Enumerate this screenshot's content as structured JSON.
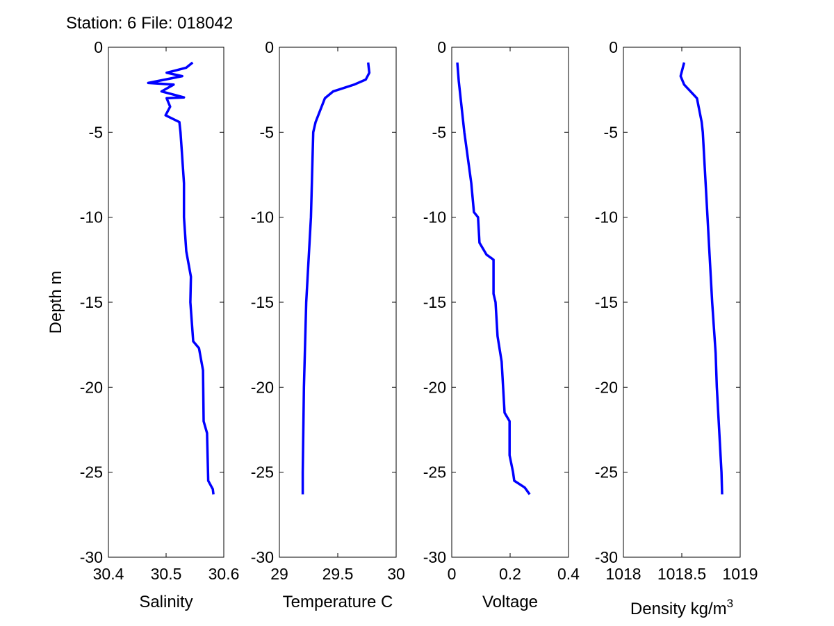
{
  "title": "Station: 6 File: 018042",
  "chart_data": [
    {
      "type": "line",
      "xlabel": "Salinity",
      "ylabel": "Depth m",
      "xlim": [
        30.4,
        30.6
      ],
      "ylim": [
        -30,
        0
      ],
      "xticks": [
        "30.4",
        "30.5",
        "30.6"
      ],
      "yticks": [
        "0",
        "-5",
        "-10",
        "-15",
        "-20",
        "-25",
        "-30"
      ],
      "color": "#0000ff",
      "x": [
        30.546,
        30.535,
        30.501,
        30.528,
        30.469,
        30.513,
        30.492,
        30.531,
        30.501,
        30.507,
        30.499,
        30.523,
        30.525,
        30.527,
        30.531,
        30.531,
        30.535,
        30.543,
        30.542,
        30.547,
        30.557,
        30.564,
        30.565,
        30.571,
        30.573,
        30.581,
        30.582
      ],
      "y": [
        -0.9,
        -1.2,
        -1.5,
        -1.7,
        -2.1,
        -2.2,
        -2.6,
        -2.95,
        -3.0,
        -3.5,
        -4.0,
        -4.4,
        -5,
        -6,
        -8,
        -10,
        -12,
        -13.5,
        -15,
        -17.3,
        -17.7,
        -19,
        -22,
        -22.7,
        -25.5,
        -26,
        -26.3
      ]
    },
    {
      "type": "line",
      "xlabel": "Temperature C",
      "ylabel": "",
      "xlim": [
        29,
        30
      ],
      "ylim": [
        -30,
        0
      ],
      "xticks": [
        "29",
        "29.5",
        "30"
      ],
      "yticks": [
        "0",
        "-5",
        "-10",
        "-15",
        "-20",
        "-25",
        "-30"
      ],
      "color": "#0000ff",
      "x": [
        29.76,
        29.77,
        29.74,
        29.64,
        29.46,
        29.39,
        29.31,
        29.29,
        29.27,
        29.23,
        29.21,
        29.2,
        29.2
      ],
      "y": [
        -0.9,
        -1.5,
        -1.9,
        -2.2,
        -2.6,
        -3.0,
        -4.4,
        -5,
        -10,
        -15,
        -20,
        -25,
        -26.3
      ]
    },
    {
      "type": "line",
      "xlabel": "Voltage",
      "ylabel": "",
      "xlim": [
        0,
        0.4
      ],
      "ylim": [
        -30,
        0
      ],
      "xticks": [
        "0",
        "0.2",
        "0.4"
      ],
      "yticks": [
        "0",
        "-5",
        "-10",
        "-15",
        "-20",
        "-25",
        "-30"
      ],
      "color": "#0000ff",
      "x": [
        0.019,
        0.024,
        0.043,
        0.067,
        0.076,
        0.09,
        0.095,
        0.119,
        0.143,
        0.143,
        0.15,
        0.157,
        0.171,
        0.181,
        0.198,
        0.198,
        0.21,
        0.214,
        0.25,
        0.267
      ],
      "y": [
        -0.9,
        -2,
        -5,
        -8,
        -9.7,
        -10,
        -11.5,
        -12.2,
        -12.5,
        -14.5,
        -15,
        -17,
        -18.5,
        -21.5,
        -22,
        -24,
        -25,
        -25.5,
        -25.9,
        -26.3
      ]
    },
    {
      "type": "line",
      "xlabel": "Density kg/m",
      "xlabel_sup": "3",
      "ylabel": "",
      "xlim": [
        1018,
        1019
      ],
      "ylim": [
        -30,
        0
      ],
      "xticks": [
        "1018",
        "1018.5",
        "1019"
      ],
      "yticks": [
        "0",
        "-5",
        "-10",
        "-15",
        "-20",
        "-25",
        "-30"
      ],
      "color": "#0000ff",
      "x": [
        1018.52,
        1018.49,
        1018.52,
        1018.63,
        1018.67,
        1018.68,
        1018.72,
        1018.76,
        1018.79,
        1018.8,
        1018.84,
        1018.845
      ],
      "y": [
        -0.9,
        -1.7,
        -2.2,
        -3,
        -4.4,
        -5,
        -10,
        -15,
        -18,
        -20,
        -25,
        -26.3
      ]
    }
  ]
}
